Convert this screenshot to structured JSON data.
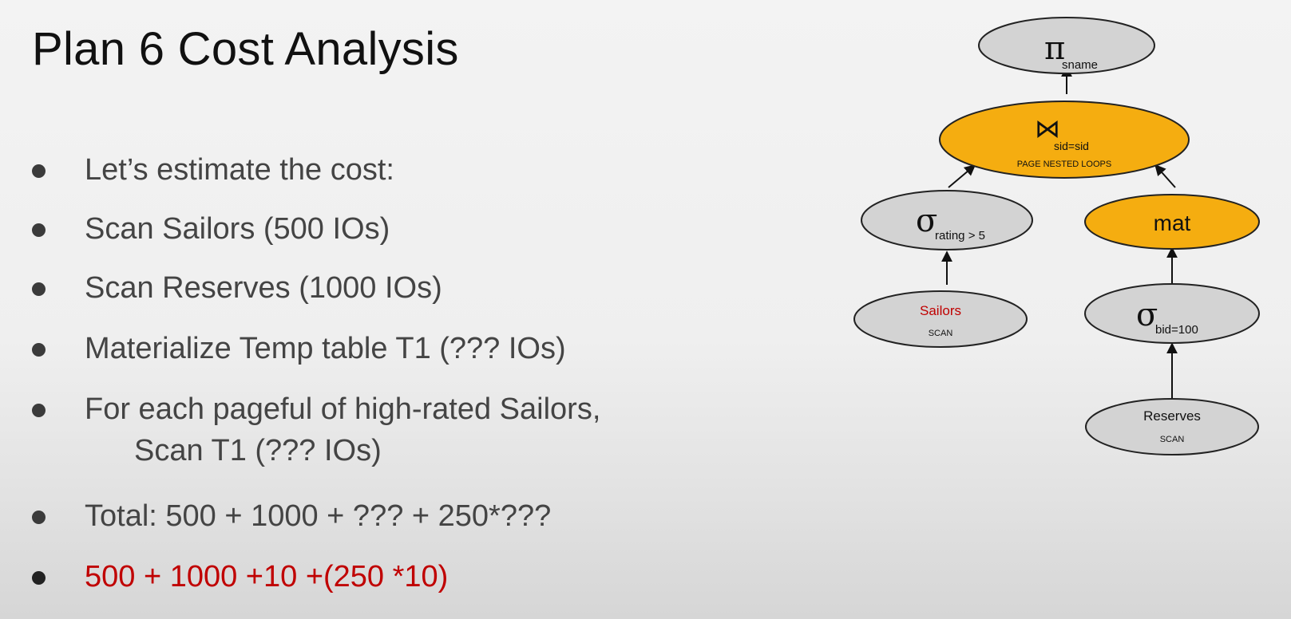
{
  "slide": {
    "title": "Plan 6 Cost Analysis",
    "bullets": [
      {
        "text": "Let’s estimate the cost:"
      },
      {
        "text": "Scan Sailors (500 IOs)"
      },
      {
        "text": "Scan Reserves (1000 IOs)"
      },
      {
        "text": "Materialize Temp table T1 (??? IOs)"
      },
      {
        "text": "For each pageful of high-rated Sailors,",
        "continuation": "Scan T1 (??? IOs)"
      },
      {
        "text": "Total: 500 + 1000 + ??? + 250*???"
      },
      {
        "text": "500 + 1000 +10 +(250 *10)",
        "highlight": true
      }
    ]
  },
  "diagram": {
    "colors": {
      "node_default": "#d3d3d3",
      "node_highlight": "#f5ad10",
      "text_red": "#c00000",
      "edge": "#111111"
    },
    "nodes": {
      "project": {
        "symbol": "π",
        "subscript": "sname"
      },
      "join": {
        "symbol": "⋈",
        "subscript": "sid=sid",
        "method": "PAGE NESTED LOOPS"
      },
      "select_rating": {
        "symbol": "σ",
        "subscript": "rating > 5"
      },
      "mat": {
        "label": "mat"
      },
      "sailors": {
        "label": "Sailors",
        "method": "SCAN"
      },
      "select_bid": {
        "symbol": "σ",
        "subscript": "bid=100"
      },
      "reserves": {
        "label": "Reserves",
        "method": "SCAN"
      }
    }
  }
}
